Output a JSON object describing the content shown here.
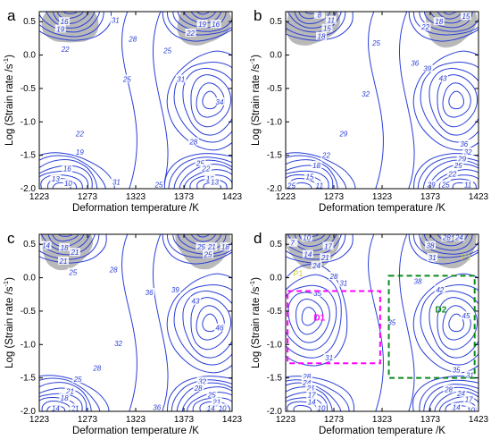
{
  "chart_data": [
    {
      "type": "contour",
      "panel_label": "a",
      "xlabel": "Deformation temperature /K",
      "ylabel": "Log (Strain rate /s",
      "ylabel_sup": "-1",
      "ylabel_close": ")",
      "x_ticks": [
        1223,
        1273,
        1323,
        1373,
        1423
      ],
      "y_ticks": [
        "0.5",
        "0.0",
        "-0.5",
        "-1.0",
        "-1.5",
        "-2.0"
      ],
      "xlim": [
        1223,
        1423
      ],
      "ylim": [
        -2.0,
        0.65
      ],
      "peaks": [
        {
          "x": 1400,
          "y": -0.68,
          "value": 34
        },
        {
          "x": 1246,
          "y": -1.98,
          "value": 10
        },
        {
          "x": 1402,
          "y": -1.98,
          "value": 10
        }
      ],
      "instability": [
        {
          "x": 1255,
          "y": 0.52
        },
        {
          "x": 1393,
          "y": 0.52
        }
      ],
      "contour_labels": [
        {
          "text": "16",
          "x": 1249,
          "y": 0.5
        },
        {
          "text": "19",
          "x": 1245,
          "y": 0.39
        },
        {
          "text": "22",
          "x": 1250,
          "y": 0.09
        },
        {
          "text": "31",
          "x": 1302,
          "y": 0.52
        },
        {
          "text": "28",
          "x": 1320,
          "y": 0.24
        },
        {
          "text": "19",
          "x": 1392,
          "y": 0.46
        },
        {
          "text": "16",
          "x": 1406,
          "y": 0.46
        },
        {
          "text": "22",
          "x": 1380,
          "y": 0.33
        },
        {
          "text": "25",
          "x": 1356,
          "y": 0.07
        },
        {
          "text": "25",
          "x": 1314,
          "y": -0.36
        },
        {
          "text": "31",
          "x": 1370,
          "y": -0.36
        },
        {
          "text": "34",
          "x": 1410,
          "y": -0.7
        },
        {
          "text": "22",
          "x": 1265,
          "y": -1.18
        },
        {
          "text": "19",
          "x": 1265,
          "y": -1.45
        },
        {
          "text": "16",
          "x": 1252,
          "y": -1.7
        },
        {
          "text": "13",
          "x": 1240,
          "y": -1.85
        },
        {
          "text": "10",
          "x": 1253,
          "y": -1.92
        },
        {
          "text": "31",
          "x": 1303,
          "y": -1.9
        },
        {
          "text": "28",
          "x": 1383,
          "y": -1.3
        },
        {
          "text": "25",
          "x": 1390,
          "y": -1.62
        },
        {
          "text": "22",
          "x": 1396,
          "y": -1.7
        },
        {
          "text": "25",
          "x": 1347,
          "y": -1.94
        },
        {
          "text": "16",
          "x": 1400,
          "y": -1.85
        },
        {
          "text": "13",
          "x": 1405,
          "y": -1.9
        }
      ]
    },
    {
      "type": "contour",
      "panel_label": "b",
      "xlabel": "Deformation temperature /K",
      "ylabel": "Log (Strain rate /s",
      "ylabel_sup": "-1",
      "ylabel_close": ")",
      "x_ticks": [
        1223,
        1273,
        1323,
        1373,
        1423
      ],
      "y_ticks": [
        "0.5",
        "0.0",
        "-0.5",
        "-1.0",
        "-1.5",
        "-2.0"
      ],
      "xlim": [
        1223,
        1423
      ],
      "ylim": [
        -2.0,
        0.65
      ],
      "peaks": [
        {
          "x": 1400,
          "y": -0.68,
          "value": 43
        },
        {
          "x": 1240,
          "y": -1.98,
          "value": 11
        },
        {
          "x": 1405,
          "y": -1.98,
          "value": 11
        }
      ],
      "instability": [
        {
          "x": 1250,
          "y": 0.52
        },
        {
          "x": 1393,
          "y": 0.52
        }
      ],
      "contour_labels": [
        {
          "text": "8",
          "x": 1258,
          "y": 0.6
        },
        {
          "text": "11",
          "x": 1270,
          "y": 0.52
        },
        {
          "text": "15",
          "x": 1266,
          "y": 0.4
        },
        {
          "text": "18",
          "x": 1260,
          "y": 0.28
        },
        {
          "text": "22",
          "x": 1368,
          "y": 0.42
        },
        {
          "text": "18",
          "x": 1382,
          "y": 0.5
        },
        {
          "text": "15",
          "x": 1410,
          "y": 0.58
        },
        {
          "text": "25",
          "x": 1317,
          "y": 0.18
        },
        {
          "text": "36",
          "x": 1357,
          "y": -0.12
        },
        {
          "text": "39",
          "x": 1370,
          "y": -0.2
        },
        {
          "text": "43",
          "x": 1386,
          "y": -0.35
        },
        {
          "text": "32",
          "x": 1306,
          "y": -0.58
        },
        {
          "text": "29",
          "x": 1283,
          "y": -1.18
        },
        {
          "text": "22",
          "x": 1265,
          "y": -1.5
        },
        {
          "text": "18",
          "x": 1255,
          "y": -1.65
        },
        {
          "text": "15",
          "x": 1248,
          "y": -1.82
        },
        {
          "text": "11",
          "x": 1258,
          "y": -1.95
        },
        {
          "text": "25",
          "x": 1229,
          "y": -1.95
        },
        {
          "text": "36",
          "x": 1408,
          "y": -1.33
        },
        {
          "text": "32",
          "x": 1412,
          "y": -1.45
        },
        {
          "text": "29",
          "x": 1406,
          "y": -1.55
        },
        {
          "text": "25",
          "x": 1402,
          "y": -1.65
        },
        {
          "text": "22",
          "x": 1396,
          "y": -1.78
        },
        {
          "text": "29",
          "x": 1374,
          "y": -1.94
        },
        {
          "text": "25",
          "x": 1389,
          "y": -1.94
        },
        {
          "text": "11",
          "x": 1412,
          "y": -1.94
        }
      ]
    },
    {
      "type": "contour",
      "panel_label": "c",
      "xlabel": "Deformation temperature /K",
      "ylabel": "Log (Strain rate /s",
      "ylabel_sup": "-1",
      "ylabel_close": ")",
      "x_ticks": [
        1223,
        1273,
        1323,
        1373,
        1423
      ],
      "y_ticks": [
        "0.5",
        "0.0",
        "-0.5",
        "-1.0",
        "-1.5",
        "-2.0"
      ],
      "xlim": [
        1223,
        1423
      ],
      "ylim": [
        -2.0,
        0.65
      ],
      "peaks": [
        {
          "x": 1400,
          "y": -0.68,
          "value": 46
        },
        {
          "x": 1240,
          "y": -1.98,
          "value": 10
        },
        {
          "x": 1405,
          "y": -1.98,
          "value": 10
        }
      ],
      "instability": [
        {
          "x": 1250,
          "y": 0.52
        },
        {
          "x": 1393,
          "y": 0.52
        }
      ],
      "contour_labels": [
        {
          "text": "14",
          "x": 1230,
          "y": 0.48
        },
        {
          "text": "18",
          "x": 1249,
          "y": 0.45
        },
        {
          "text": "21",
          "x": 1260,
          "y": 0.38
        },
        {
          "text": "21",
          "x": 1248,
          "y": 0.25
        },
        {
          "text": "25",
          "x": 1258,
          "y": 0.08
        },
        {
          "text": "28",
          "x": 1300,
          "y": 0.12
        },
        {
          "text": "25",
          "x": 1391,
          "y": 0.46
        },
        {
          "text": "21",
          "x": 1402,
          "y": 0.46
        },
        {
          "text": "18",
          "x": 1416,
          "y": 0.46
        },
        {
          "text": "25",
          "x": 1398,
          "y": 0.35
        },
        {
          "text": "36",
          "x": 1337,
          "y": -0.22
        },
        {
          "text": "39",
          "x": 1364,
          "y": -0.18
        },
        {
          "text": "43",
          "x": 1385,
          "y": -0.35
        },
        {
          "text": "46",
          "x": 1410,
          "y": -0.75
        },
        {
          "text": "32",
          "x": 1305,
          "y": -0.98
        },
        {
          "text": "28",
          "x": 1283,
          "y": -1.35
        },
        {
          "text": "25",
          "x": 1263,
          "y": -1.52
        },
        {
          "text": "21",
          "x": 1255,
          "y": -1.7
        },
        {
          "text": "18",
          "x": 1249,
          "y": -1.8
        },
        {
          "text": "14",
          "x": 1240,
          "y": -1.95
        },
        {
          "text": "21",
          "x": 1260,
          "y": -1.95
        },
        {
          "text": "10",
          "x": 1256,
          "y": -2.02
        },
        {
          "text": "36",
          "x": 1345,
          "y": -1.94
        },
        {
          "text": "32",
          "x": 1392,
          "y": -1.55
        },
        {
          "text": "28",
          "x": 1388,
          "y": -1.65
        },
        {
          "text": "25",
          "x": 1402,
          "y": -1.75
        },
        {
          "text": "21",
          "x": 1407,
          "y": -1.86
        },
        {
          "text": "14",
          "x": 1401,
          "y": -1.95
        },
        {
          "text": "10",
          "x": 1413,
          "y": -1.95
        }
      ]
    },
    {
      "type": "contour",
      "panel_label": "d",
      "xlabel": "Deformation temperature /K",
      "ylabel": "Log (Strain rate /s",
      "ylabel_sup": "-1",
      "ylabel_close": ")",
      "x_ticks": [
        1223,
        1273,
        1323,
        1373,
        1423
      ],
      "y_ticks": [
        "0.5",
        "0.0",
        "-0.5",
        "-1.0",
        "-1.5",
        "-2.0"
      ],
      "xlim": [
        1223,
        1423
      ],
      "ylim": [
        -2.0,
        0.65
      ],
      "peaks": [
        {
          "x": 1400,
          "y": -0.68,
          "value": 45
        },
        {
          "x": 1247,
          "y": -0.58,
          "value": 35
        },
        {
          "x": 1240,
          "y": -1.98,
          "value": 10
        },
        {
          "x": 1405,
          "y": -1.98,
          "value": 10
        }
      ],
      "instability": [
        {
          "x": 1250,
          "y": 0.52
        },
        {
          "x": 1393,
          "y": 0.52
        }
      ],
      "colors": {
        "d1": "#ff00ff",
        "d2": "#0a8a1a",
        "p_label": "#d8cf2a"
      },
      "instability_labels": [
        {
          "text": "P1",
          "x": 1236,
          "y": 0.02
        },
        {
          "text": "P2",
          "x": 1410,
          "y": 0.26
        }
      ],
      "domains": [
        {
          "name": "D1",
          "x0": 1225,
          "x1": 1321,
          "y0": -1.28,
          "y1": -0.2,
          "label_x": 1258,
          "label_y": -0.64,
          "color": "#ff00ff"
        },
        {
          "name": "D2",
          "x0": 1330,
          "x1": 1419,
          "y0": -1.5,
          "y1": 0.03,
          "label_x": 1384,
          "label_y": -0.52,
          "color": "#0a8a1a"
        }
      ],
      "contour_labels": [
        {
          "text": "7",
          "x": 1230,
          "y": 0.52
        },
        {
          "text": "10",
          "x": 1245,
          "y": 0.6
        },
        {
          "text": "14",
          "x": 1246,
          "y": 0.35
        },
        {
          "text": "17",
          "x": 1267,
          "y": 0.47
        },
        {
          "text": "21",
          "x": 1264,
          "y": 0.3
        },
        {
          "text": "24",
          "x": 1255,
          "y": 0.18
        },
        {
          "text": "28",
          "x": 1273,
          "y": 0.02
        },
        {
          "text": "31",
          "x": 1283,
          "y": -0.08
        },
        {
          "text": "35",
          "x": 1256,
          "y": -0.23
        },
        {
          "text": "35",
          "x": 1333,
          "y": -0.67
        },
        {
          "text": "38",
          "x": 1360,
          "y": -0.05
        },
        {
          "text": "42",
          "x": 1383,
          "y": -0.18
        },
        {
          "text": "45",
          "x": 1410,
          "y": -0.57
        },
        {
          "text": "38",
          "x": 1373,
          "y": 0.48
        },
        {
          "text": "31",
          "x": 1375,
          "y": 0.3
        },
        {
          "text": "28",
          "x": 1390,
          "y": 0.6
        },
        {
          "text": "24",
          "x": 1403,
          "y": 0.6
        },
        {
          "text": "31",
          "x": 1268,
          "y": -1.2
        },
        {
          "text": "35",
          "x": 1400,
          "y": -1.38
        },
        {
          "text": "31",
          "x": 1414,
          "y": -1.46
        },
        {
          "text": "28",
          "x": 1245,
          "y": -1.48
        },
        {
          "text": "24",
          "x": 1245,
          "y": -1.57
        },
        {
          "text": "21",
          "x": 1249,
          "y": -1.65
        },
        {
          "text": "17",
          "x": 1250,
          "y": -1.75
        },
        {
          "text": "14",
          "x": 1250,
          "y": -1.86
        },
        {
          "text": "10",
          "x": 1260,
          "y": -1.95
        },
        {
          "text": "28",
          "x": 1392,
          "y": -1.67
        },
        {
          "text": "24",
          "x": 1405,
          "y": -1.73
        },
        {
          "text": "17",
          "x": 1413,
          "y": -1.82
        },
        {
          "text": "14",
          "x": 1400,
          "y": -1.94
        },
        {
          "text": "10",
          "x": 1415,
          "y": -1.98
        }
      ]
    }
  ],
  "colors": {
    "contour": "#2a3fd6",
    "instability": "#b9b9b9",
    "axis": "#000000"
  }
}
